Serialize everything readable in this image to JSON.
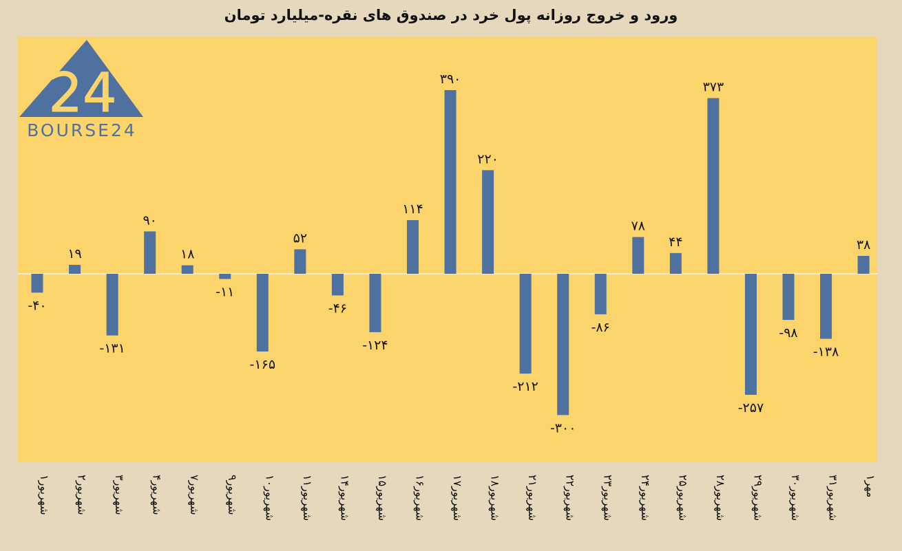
{
  "title": "ورود و خروج روزانه پول خرد در صندوق های نقره-میلیارد تومان",
  "logo": {
    "mark": "24",
    "text": "BOURSE24"
  },
  "chart_data": {
    "type": "bar",
    "title": "ورود و خروج روزانه پول خرد در صندوق های نقره-میلیارد تومان",
    "xlabel": "",
    "ylabel": "",
    "ylim": [
      -400,
      410
    ],
    "grid": false,
    "legend": "none",
    "bar_color": "#4f71a0",
    "background_color": "#fcd46c",
    "categories": [
      "۱شهریور",
      "۲شهریور",
      "۳شهریور",
      "۴شهریور",
      "۷شهریور",
      "۹شهریور",
      "۱۰شهریور",
      "۱۱شهریور",
      "۱۴شهریور",
      "۱۵شهریور",
      "۱۶شهریور",
      "۱۷شهریور",
      "۱۸شهریور",
      "۲۱شهریور",
      "۲۲شهریور",
      "۲۳شهریور",
      "۲۴شهریور",
      "۲۵شهریور",
      "۲۸شهریور",
      "۲۹شهریور",
      "۳۰شهریور",
      "۳۱شهریور",
      "۱مهر"
    ],
    "values": [
      -40,
      19,
      -131,
      90,
      18,
      -11,
      -165,
      52,
      -46,
      -124,
      114,
      390,
      220,
      -212,
      -300,
      -86,
      78,
      44,
      373,
      -257,
      -98,
      -138,
      38
    ],
    "data_labels": [
      "-۴۰",
      "۱۹",
      "-۱۳۱",
      "۹۰",
      "۱۸",
      "-۱۱",
      "-۱۶۵",
      "۵۲",
      "-۴۶",
      "-۱۲۴",
      "۱۱۴",
      "۳۹۰",
      "۲۲۰",
      "-۲۱۲",
      "-۳۰۰",
      "-۸۶",
      "۷۸",
      "۴۴",
      "۳۷۳",
      "-۲۵۷",
      "-۹۸",
      "-۱۳۸",
      "۳۸"
    ]
  }
}
